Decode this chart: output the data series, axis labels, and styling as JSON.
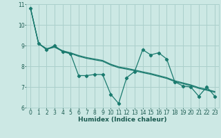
{
  "xlabel": "Humidex (Indice chaleur)",
  "bg_color": "#cce8e4",
  "grid_color": "#aacfcb",
  "line_color": "#1a7a6e",
  "xlim": [
    -0.5,
    23.5
  ],
  "ylim": [
    6,
    11
  ],
  "yticks": [
    6,
    7,
    8,
    9,
    10,
    11
  ],
  "xticks": [
    0,
    1,
    2,
    3,
    4,
    5,
    6,
    7,
    8,
    9,
    10,
    11,
    12,
    13,
    14,
    15,
    16,
    17,
    18,
    19,
    20,
    21,
    22,
    23
  ],
  "series0": {
    "x": [
      0,
      1,
      2,
      3,
      4,
      5,
      6,
      7,
      8,
      9,
      10,
      11,
      12,
      13,
      14,
      15,
      16,
      17,
      18,
      19,
      20,
      21,
      22,
      23
    ],
    "y": [
      10.8,
      9.1,
      8.8,
      9.0,
      8.7,
      8.6,
      7.55,
      7.55,
      7.6,
      7.6,
      6.65,
      6.2,
      7.45,
      7.75,
      8.8,
      8.55,
      8.65,
      8.35,
      7.25,
      7.05,
      7.0,
      6.55,
      7.0,
      6.55
    ]
  },
  "series1": {
    "x": [
      0,
      1,
      2,
      3,
      4,
      5,
      6,
      7,
      8,
      9,
      10,
      11,
      12,
      13,
      14,
      15,
      16,
      17,
      18,
      19,
      20,
      21,
      22,
      23
    ],
    "y": [
      10.8,
      9.1,
      8.85,
      8.95,
      8.75,
      8.65,
      8.52,
      8.42,
      8.35,
      8.28,
      8.1,
      7.97,
      7.9,
      7.82,
      7.73,
      7.65,
      7.55,
      7.45,
      7.3,
      7.2,
      7.1,
      6.97,
      6.88,
      6.78
    ]
  },
  "series2": {
    "x": [
      0,
      1,
      2,
      3,
      4,
      5,
      6,
      7,
      8,
      9,
      10,
      11,
      12,
      13,
      14,
      15,
      16,
      17,
      18,
      19,
      20,
      21,
      22,
      23
    ],
    "y": [
      10.8,
      9.1,
      8.82,
      8.92,
      8.72,
      8.62,
      8.48,
      8.38,
      8.31,
      8.24,
      8.06,
      7.93,
      7.86,
      7.78,
      7.69,
      7.61,
      7.51,
      7.41,
      7.26,
      7.16,
      7.06,
      6.93,
      6.84,
      6.74
    ]
  }
}
